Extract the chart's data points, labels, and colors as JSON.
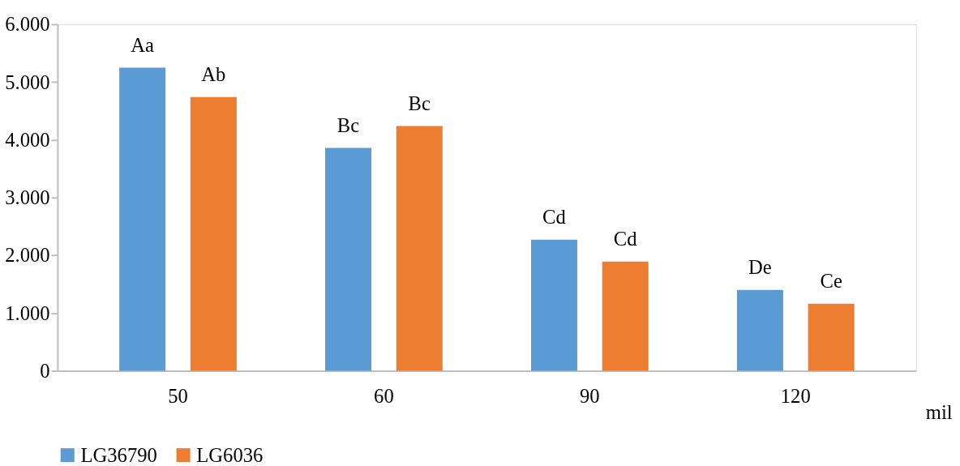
{
  "chart_data": {
    "type": "bar",
    "xlabel": "mil",
    "categories": [
      "50",
      "60",
      "90",
      "120"
    ],
    "series": [
      {
        "name": "LG36790",
        "color": "#5b9bd5",
        "values": [
          5250,
          3860,
          2270,
          1400
        ],
        "value_labels": [
          "Aa",
          "Bc",
          "Cd",
          "De"
        ]
      },
      {
        "name": "LG6036",
        "color": "#ed7d31",
        "values": [
          4740,
          4240,
          1890,
          1160
        ],
        "value_labels": [
          "Ab",
          "Bc",
          "Cd",
          "Ce"
        ]
      }
    ],
    "ylim": [
      0,
      6000
    ],
    "yticks": [
      0,
      {
        "value": 1000,
        "label": "1.000"
      },
      {
        "value": 2000,
        "label": "2.000"
      },
      {
        "value": 3000,
        "label": "3.000"
      },
      {
        "value": 4000,
        "label": "4.000"
      },
      {
        "value": 5000,
        "label": "5.000"
      },
      {
        "value": 6000,
        "label": "6.000"
      }
    ],
    "grid": false,
    "legend": "bottom"
  }
}
